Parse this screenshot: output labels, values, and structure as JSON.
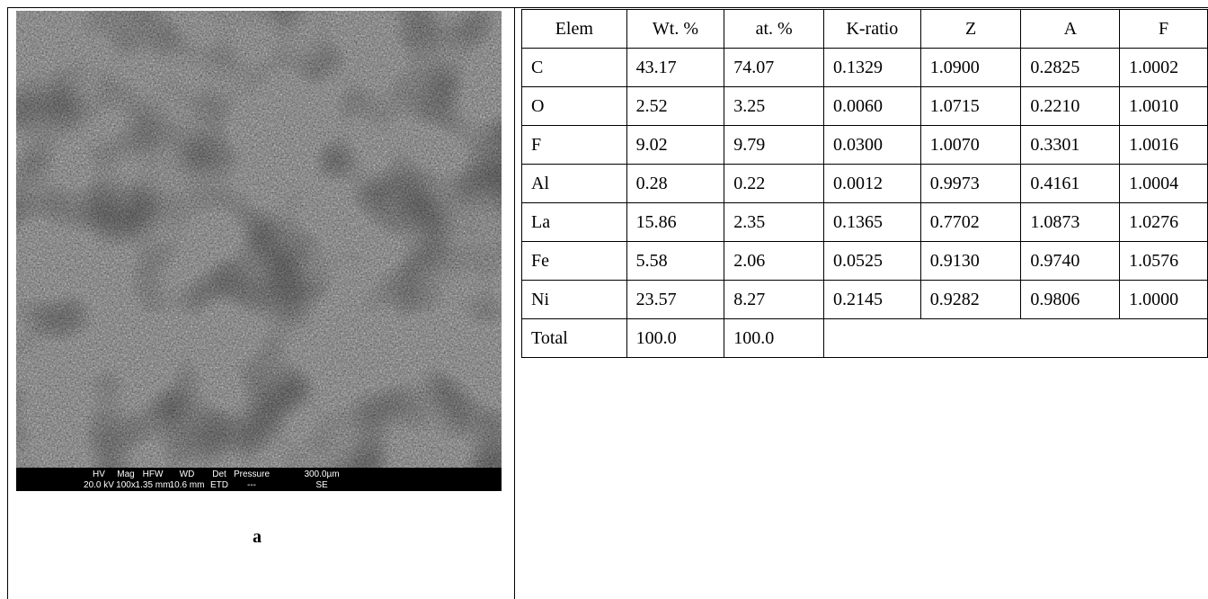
{
  "figure": {
    "scale_bar": {
      "headers": [
        "HV",
        "Mag",
        "HFW",
        "WD",
        "Det",
        "Pressure",
        "300.0µm"
      ],
      "values": [
        "20.0 kV",
        "100x",
        "1.35 mm",
        "10.6 mm",
        "ETD",
        "---",
        "SE"
      ]
    },
    "label": "a"
  },
  "table": {
    "header": [
      "Elem",
      "Wt. %",
      "at. %",
      "K-ratio",
      "Z",
      "A",
      "F"
    ],
    "rows": [
      [
        "C",
        "43.17",
        "74.07",
        "0.1329",
        "1.0900",
        "0.2825",
        "1.0002"
      ],
      [
        "O",
        "2.52",
        "3.25",
        "0.0060",
        "1.0715",
        "0.2210",
        "1.0010"
      ],
      [
        "F",
        "9.02",
        "9.79",
        "0.0300",
        "1.0070",
        "0.3301",
        "1.0016"
      ],
      [
        "Al",
        "0.28",
        "0.22",
        "0.0012",
        "0.9973",
        "0.4161",
        "1.0004"
      ],
      [
        "La",
        "15.86",
        "2.35",
        "0.1365",
        "0.7702",
        "1.0873",
        "1.0276"
      ],
      [
        "Fe",
        "5.58",
        "2.06",
        "0.0525",
        "0.9130",
        "0.9740",
        "1.0576"
      ],
      [
        "Ni",
        "23.57",
        "8.27",
        "0.2145",
        "0.9282",
        "0.9806",
        "1.0000"
      ],
      [
        "Total",
        "100.0",
        "100.0"
      ]
    ]
  }
}
